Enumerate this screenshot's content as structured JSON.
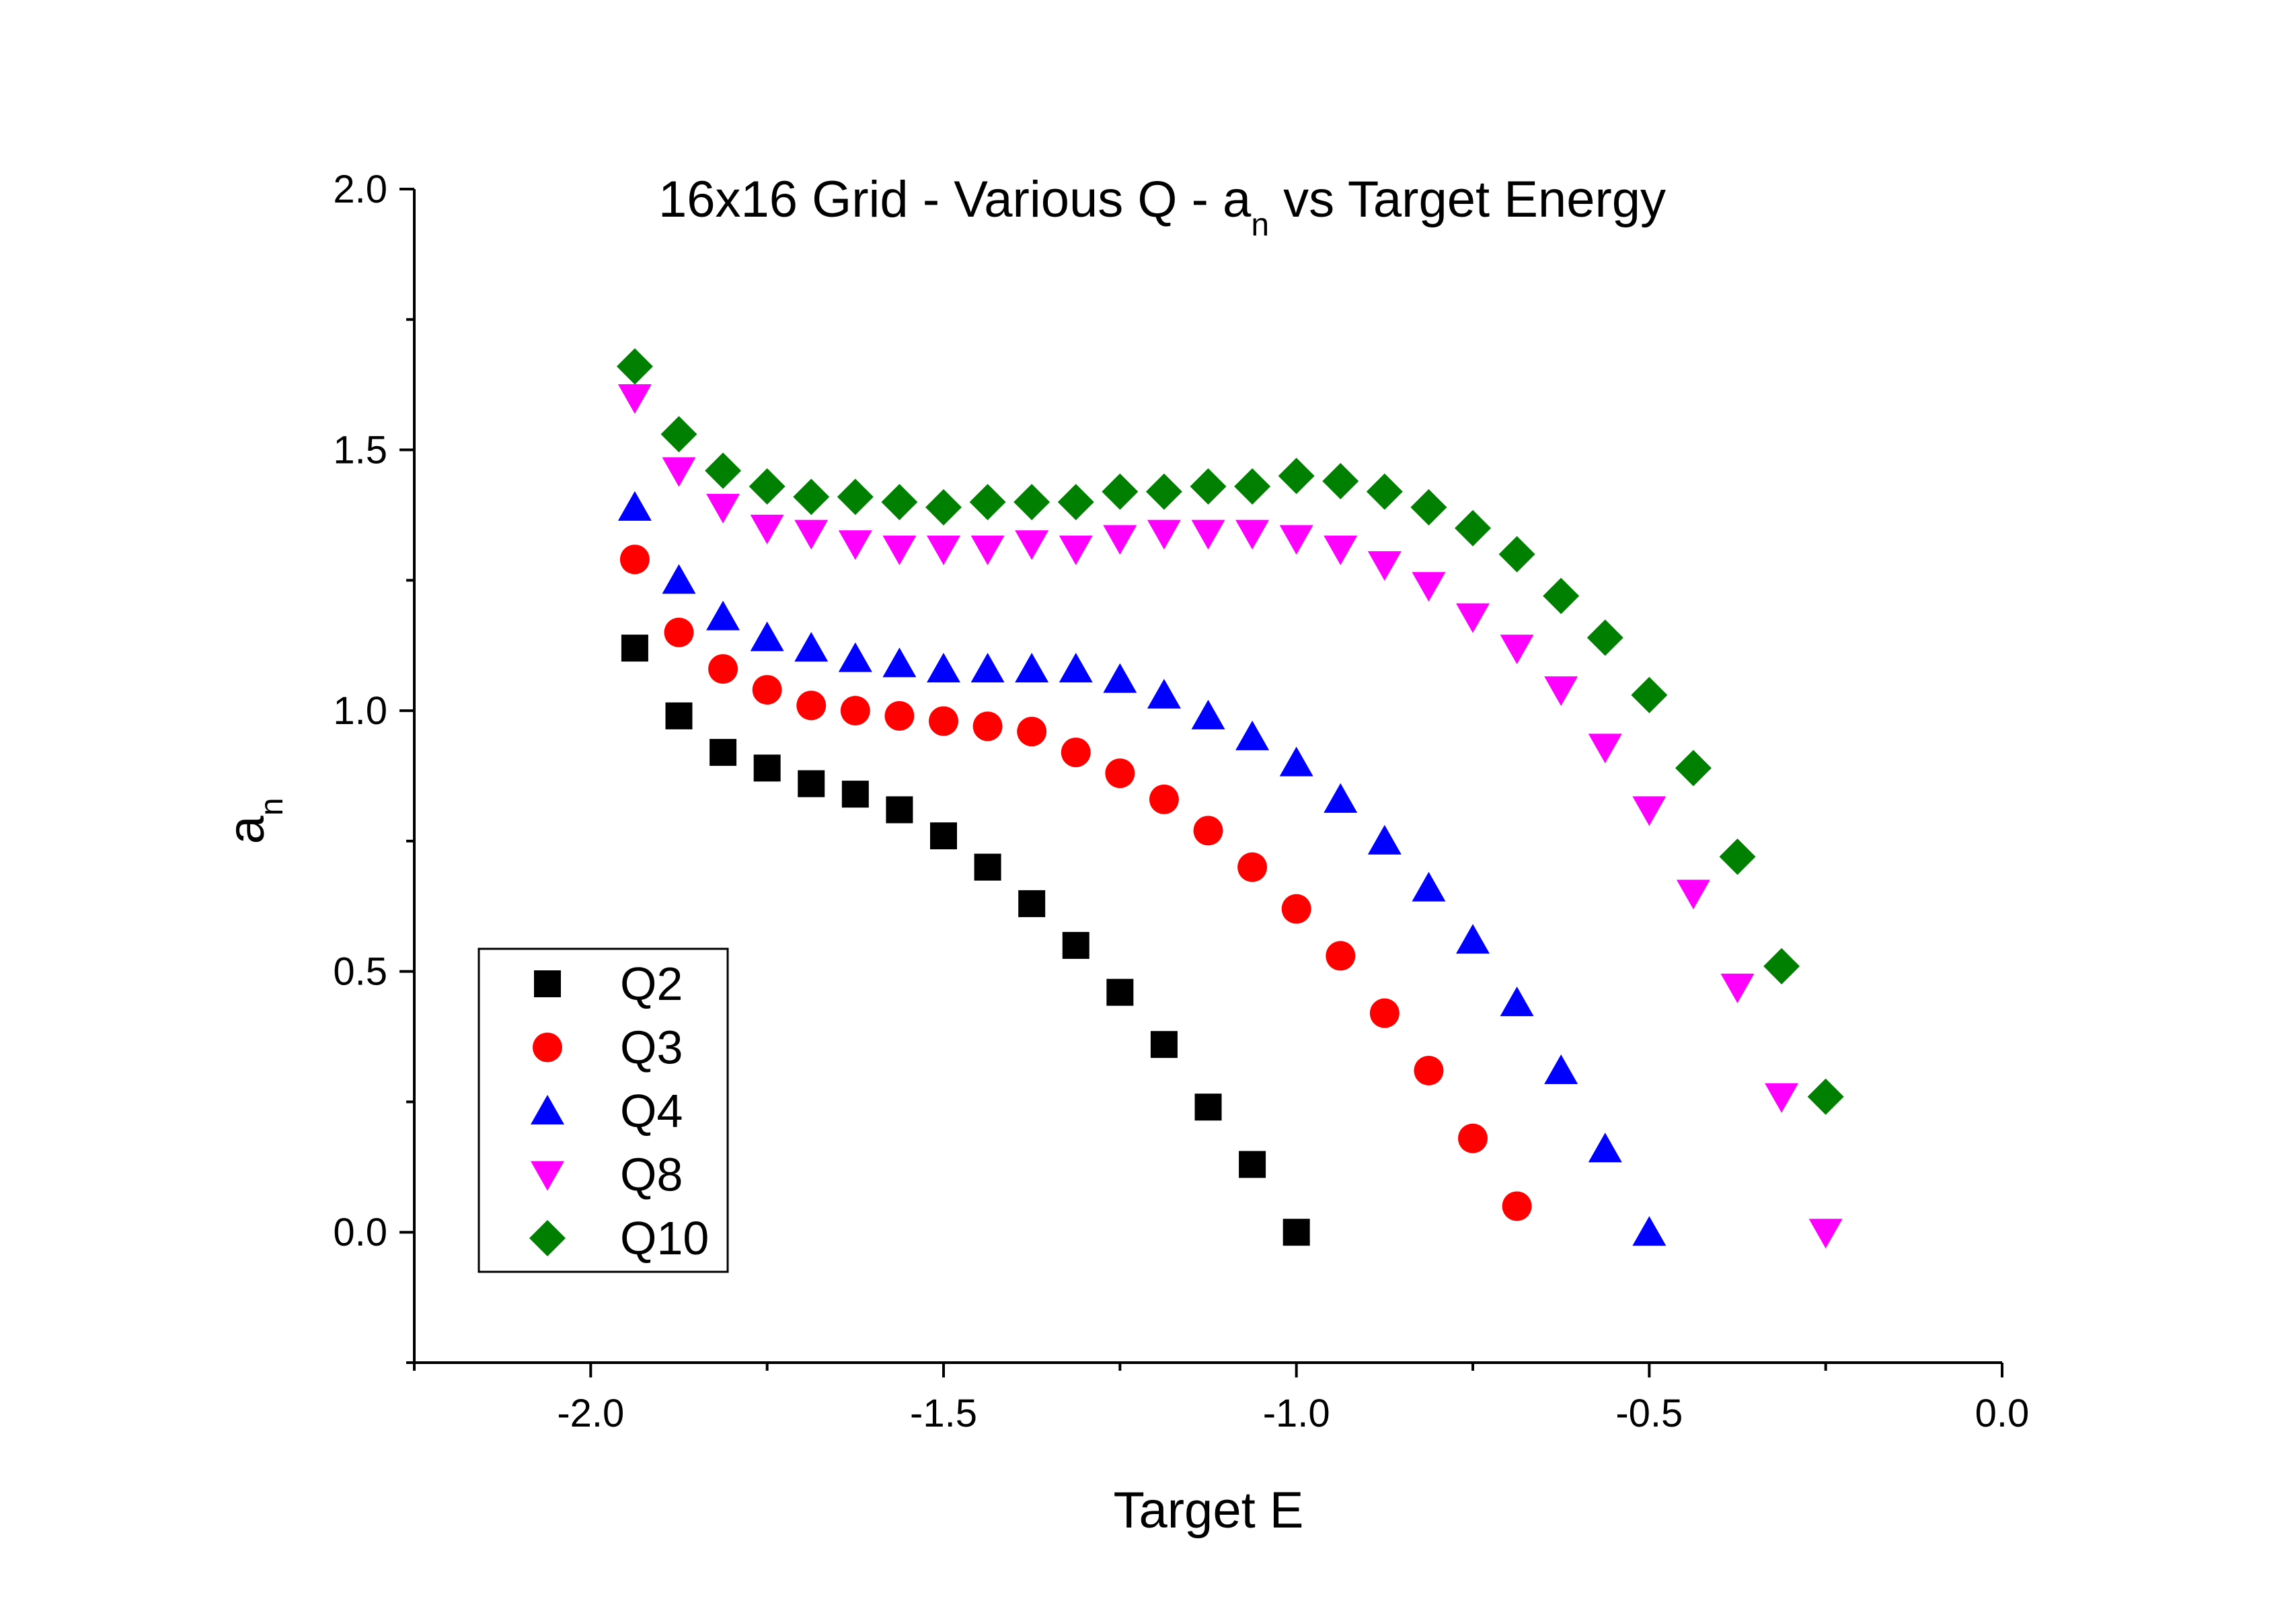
{
  "chart_data": {
    "type": "scatter",
    "title": {
      "main": "16x16 Grid - Various Q - a",
      "sub": "n",
      "rest": " vs Target Energy"
    },
    "xlabel": "Target E",
    "ylabel": {
      "main": "a",
      "sub": "n"
    },
    "xlim": [
      -2.25,
      0.0
    ],
    "ylim": [
      -0.25,
      2.0
    ],
    "xticks": [
      -2.0,
      -1.5,
      -1.0,
      -0.5,
      0.0
    ],
    "xtick_labels": [
      "-2.0",
      "-1.5",
      "-1.0",
      "-0.5",
      "0.0"
    ],
    "yticks": [
      0.0,
      0.5,
      1.0,
      1.5,
      2.0
    ],
    "ytick_labels": [
      "0.0",
      "0.5",
      "1.0",
      "1.5",
      "2.0"
    ],
    "grid": false,
    "legend_position": "bottom-left",
    "series": [
      {
        "name": "Q2",
        "marker": "square",
        "color": "#000000",
        "x": [
          -1.9375,
          -1.875,
          -1.8125,
          -1.75,
          -1.6875,
          -1.625,
          -1.5625,
          -1.5,
          -1.4375,
          -1.375,
          -1.3125,
          -1.25,
          -1.1875,
          -1.125,
          -1.0625,
          -1.0
        ],
        "y": [
          1.12,
          0.99,
          0.92,
          0.89,
          0.86,
          0.84,
          0.81,
          0.76,
          0.7,
          0.63,
          0.55,
          0.46,
          0.36,
          0.24,
          0.13,
          0.0
        ]
      },
      {
        "name": "Q3",
        "marker": "circle",
        "color": "#ff0000",
        "x": [
          -1.9375,
          -1.875,
          -1.8125,
          -1.75,
          -1.6875,
          -1.625,
          -1.5625,
          -1.5,
          -1.4375,
          -1.375,
          -1.3125,
          -1.25,
          -1.1875,
          -1.125,
          -1.0625,
          -1.0,
          -0.9375,
          -0.875,
          -0.8125,
          -0.75,
          -0.6875
        ],
        "y": [
          1.29,
          1.15,
          1.08,
          1.04,
          1.01,
          1.0,
          0.99,
          0.98,
          0.97,
          0.96,
          0.92,
          0.88,
          0.83,
          0.77,
          0.7,
          0.62,
          0.53,
          0.42,
          0.31,
          0.18,
          0.05
        ]
      },
      {
        "name": "Q4",
        "marker": "triangle-up",
        "color": "#0000ff",
        "x": [
          -1.9375,
          -1.875,
          -1.8125,
          -1.75,
          -1.6875,
          -1.625,
          -1.5625,
          -1.5,
          -1.4375,
          -1.375,
          -1.3125,
          -1.25,
          -1.1875,
          -1.125,
          -1.0625,
          -1.0,
          -0.9375,
          -0.875,
          -0.8125,
          -0.75,
          -0.6875,
          -0.625,
          -0.5625,
          -0.5
        ],
        "y": [
          1.39,
          1.25,
          1.18,
          1.14,
          1.12,
          1.1,
          1.09,
          1.08,
          1.08,
          1.08,
          1.08,
          1.06,
          1.03,
          0.99,
          0.95,
          0.9,
          0.83,
          0.75,
          0.66,
          0.56,
          0.44,
          0.31,
          0.16,
          0.0
        ]
      },
      {
        "name": "Q8",
        "marker": "triangle-down",
        "color": "#ff00ff",
        "x": [
          -1.9375,
          -1.875,
          -1.8125,
          -1.75,
          -1.6875,
          -1.625,
          -1.5625,
          -1.5,
          -1.4375,
          -1.375,
          -1.3125,
          -1.25,
          -1.1875,
          -1.125,
          -1.0625,
          -1.0,
          -0.9375,
          -0.875,
          -0.8125,
          -0.75,
          -0.6875,
          -0.625,
          -0.5625,
          -0.5,
          -0.4375,
          -0.375,
          -0.3125,
          -0.25
        ],
        "y": [
          1.6,
          1.46,
          1.39,
          1.35,
          1.34,
          1.32,
          1.31,
          1.31,
          1.31,
          1.32,
          1.31,
          1.33,
          1.34,
          1.34,
          1.34,
          1.33,
          1.31,
          1.28,
          1.24,
          1.18,
          1.12,
          1.04,
          0.93,
          0.81,
          0.65,
          0.47,
          0.26,
          0.0
        ]
      },
      {
        "name": "Q10",
        "marker": "diamond",
        "color": "#008000",
        "x": [
          -1.9375,
          -1.875,
          -1.8125,
          -1.75,
          -1.6875,
          -1.625,
          -1.5625,
          -1.5,
          -1.4375,
          -1.375,
          -1.3125,
          -1.25,
          -1.1875,
          -1.125,
          -1.0625,
          -1.0,
          -0.9375,
          -0.875,
          -0.8125,
          -0.75,
          -0.6875,
          -0.625,
          -0.5625,
          -0.5,
          -0.4375,
          -0.375,
          -0.3125,
          -0.25
        ],
        "y": [
          1.66,
          1.53,
          1.46,
          1.43,
          1.41,
          1.41,
          1.4,
          1.39,
          1.4,
          1.4,
          1.4,
          1.42,
          1.42,
          1.43,
          1.43,
          1.45,
          1.44,
          1.42,
          1.39,
          1.35,
          1.3,
          1.22,
          1.14,
          1.03,
          0.89,
          0.72,
          0.51,
          0.26
        ]
      }
    ]
  }
}
